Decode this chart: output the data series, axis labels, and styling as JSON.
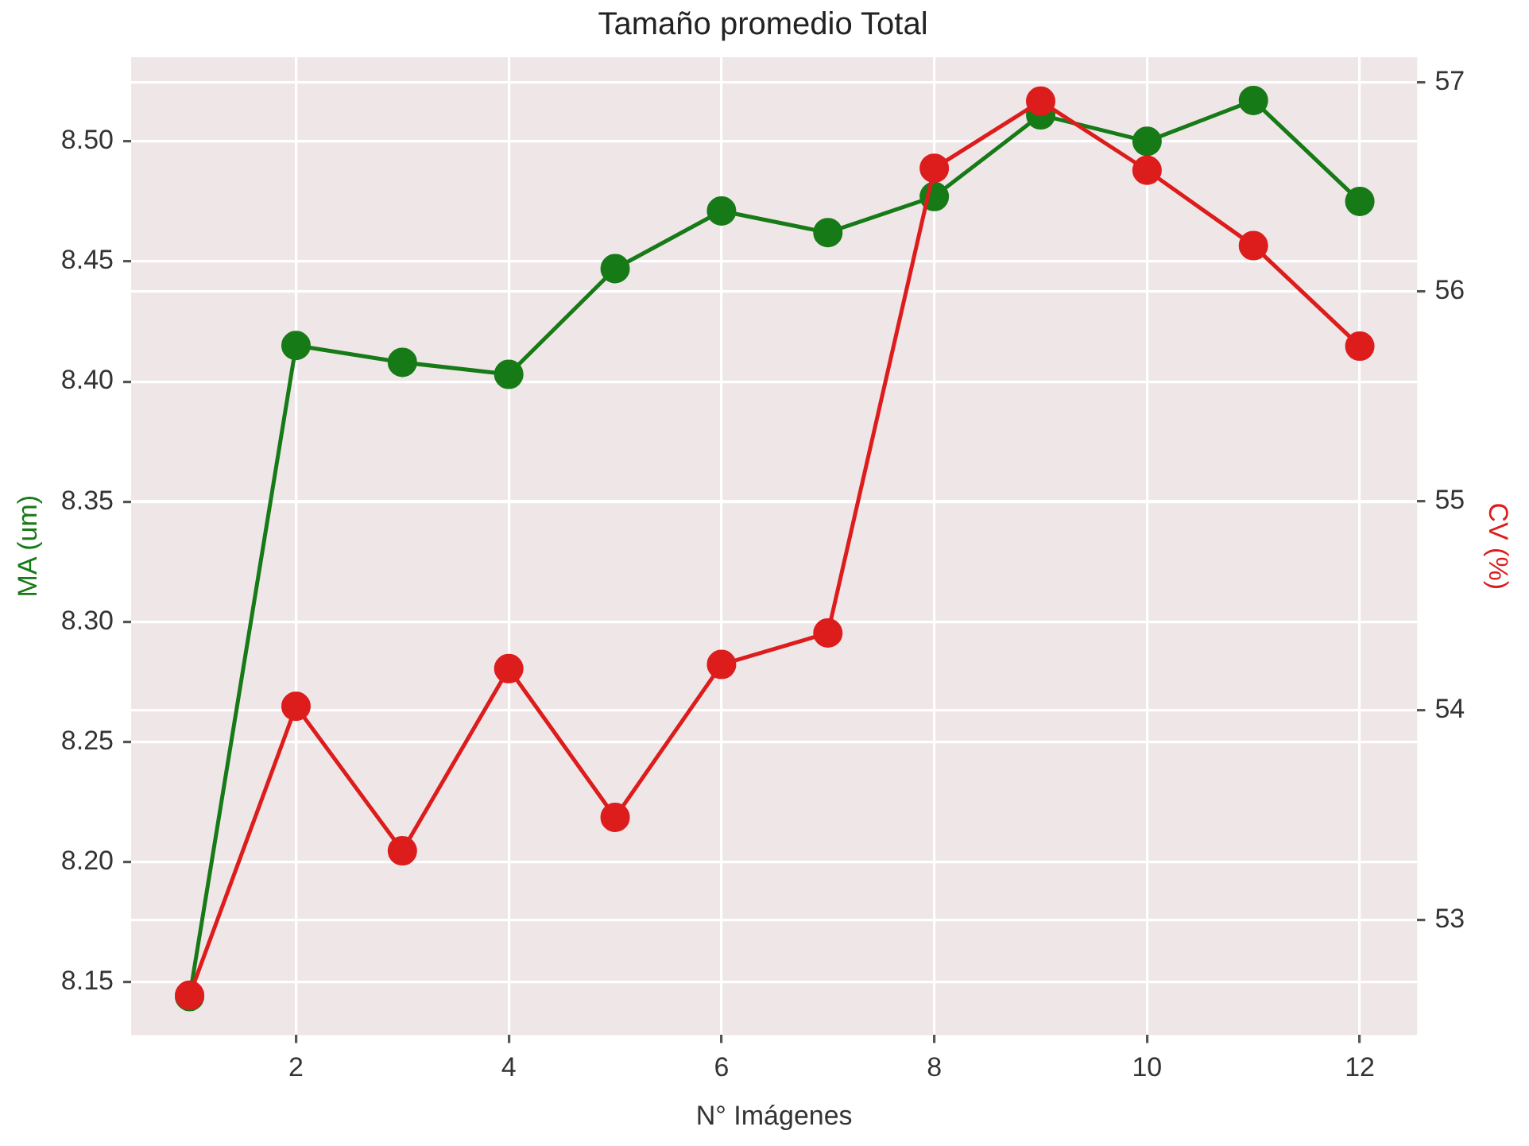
{
  "chart_data": {
    "type": "line",
    "title": "Tamaño promedio Total",
    "xlabel": "N° Imágenes",
    "ylabel": "MA (um)",
    "y2label": "CV (%)",
    "x": [
      1,
      2,
      3,
      4,
      5,
      6,
      7,
      8,
      9,
      10,
      11,
      12
    ],
    "series": [
      {
        "color": "#167a16",
        "axis": "y",
        "values": [
          8.144,
          8.415,
          8.408,
          8.403,
          8.447,
          8.471,
          8.462,
          8.477,
          8.511,
          8.5,
          8.517,
          8.475
        ]
      },
      {
        "color": "#dd1c1c",
        "axis": "y2",
        "values": [
          52.64,
          54.02,
          53.33,
          54.2,
          53.49,
          54.22,
          54.37,
          56.59,
          56.91,
          56.58,
          56.22,
          55.74
        ]
      }
    ],
    "xlim": [
      0.45,
      12.54
    ],
    "xticks": [
      2,
      4,
      6,
      8,
      10,
      12
    ],
    "ylim": [
      8.128,
      8.535
    ],
    "yticks": [
      8.15,
      {
        "value": 8.2,
        "label": "8.20"
      },
      8.25,
      {
        "value": 8.3,
        "label": "8.30"
      },
      8.35,
      {
        "value": 8.4,
        "label": "8.40"
      },
      8.45,
      {
        "value": 8.5,
        "label": "8.50"
      }
    ],
    "y2lim": [
      52.45,
      57.12
    ],
    "y2ticks": [
      53,
      54,
      55,
      56,
      57
    ],
    "grid": true,
    "legend": false,
    "marker": "circle",
    "line_style": "solid"
  }
}
